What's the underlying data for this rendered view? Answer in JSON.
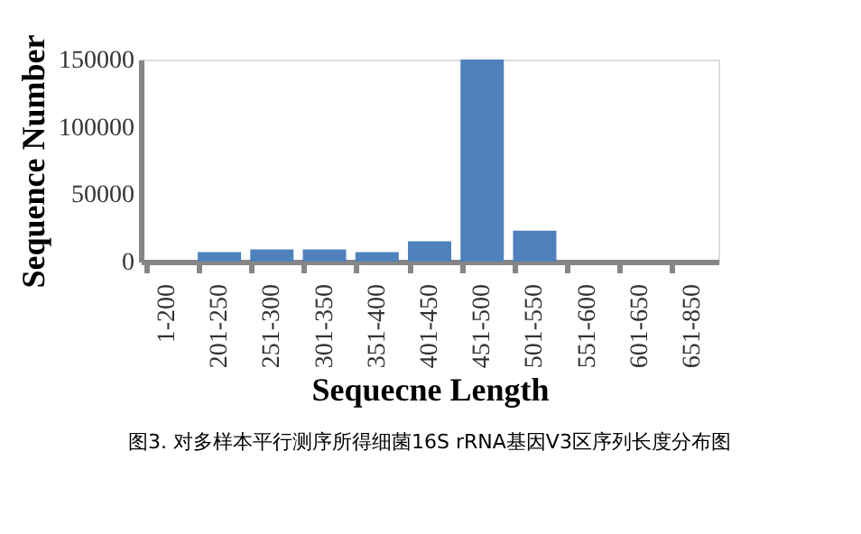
{
  "chart_data": {
    "type": "bar",
    "xlabel": "Sequecne Length",
    "ylabel": "Sequence Number",
    "categories": [
      "1-200",
      "201-250",
      "251-300",
      "301-350",
      "351-400",
      "401-450",
      "451-500",
      "501-550",
      "551-600",
      "601-650",
      "651-850"
    ],
    "values": [
      0,
      7000,
      9000,
      9000,
      7000,
      15000,
      150000,
      23000,
      0,
      0,
      0
    ],
    "color": "#4f81bd",
    "ylim": [
      0,
      150000
    ],
    "yticks": [
      0,
      50000,
      100000,
      150000
    ],
    "grid": false,
    "annotations": [
      "图3. 对多样本平行测序所得细菌16S rRNA基因V3区序列长度分布图"
    ]
  }
}
